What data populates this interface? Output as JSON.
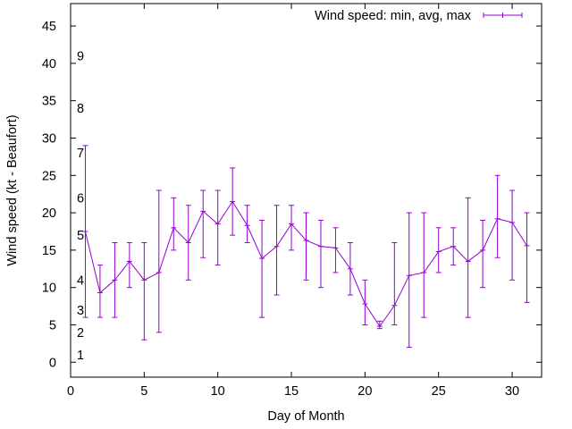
{
  "chart_data": {
    "type": "line",
    "title": "",
    "xlabel": "Day of Month",
    "ylabel": "Wind speed (kt - Beaufort)",
    "xlim": [
      0,
      32
    ],
    "ylim": [
      -2,
      48
    ],
    "x_ticks": [
      0,
      5,
      10,
      15,
      20,
      25,
      30
    ],
    "y_ticks": [
      0,
      5,
      10,
      15,
      20,
      25,
      30,
      35,
      40,
      45
    ],
    "grid": false,
    "legend_position": "top-right",
    "series": [
      {
        "name": "Wind speed: min, avg, max",
        "color": "#9400d3",
        "style": "errorbars-with-line",
        "x": [
          1,
          2,
          3,
          4,
          5,
          6,
          7,
          8,
          9,
          10,
          11,
          12,
          13,
          14,
          15,
          16,
          17,
          18,
          19,
          20,
          21,
          22,
          23,
          24,
          25,
          26,
          27,
          28,
          29,
          30,
          31
        ],
        "avg": [
          17.5,
          9.3,
          11,
          13.5,
          11,
          12,
          18,
          16,
          20.2,
          18.5,
          21.5,
          18.3,
          13.9,
          15.5,
          18.5,
          16.3,
          15.5,
          15.3,
          12.5,
          7.8,
          4.8,
          7.6,
          11.6,
          12,
          14.8,
          15.5,
          13.5,
          15,
          19.2,
          18.7,
          15.6
        ],
        "min": [
          6,
          6,
          6,
          10,
          3,
          4,
          15,
          11,
          14,
          13,
          17,
          16,
          6,
          9,
          15,
          11,
          10,
          12,
          9,
          5,
          4.5,
          5,
          2,
          6,
          12,
          13,
          6,
          10,
          14,
          11,
          8
        ],
        "max": [
          29,
          13,
          16,
          16,
          16,
          23,
          22,
          21,
          23,
          23,
          26,
          21,
          19,
          21,
          21,
          20,
          19,
          18,
          16,
          11,
          5.5,
          16,
          20,
          20,
          18,
          18,
          22,
          19,
          25,
          23,
          20
        ]
      }
    ],
    "beaufort_labels": [
      {
        "text": "1",
        "y": 1
      },
      {
        "text": "2",
        "y": 4
      },
      {
        "text": "3",
        "y": 7
      },
      {
        "text": "4",
        "y": 11
      },
      {
        "text": "5",
        "y": 17
      },
      {
        "text": "6",
        "y": 22
      },
      {
        "text": "7",
        "y": 28
      },
      {
        "text": "8",
        "y": 34
      },
      {
        "text": "9",
        "y": 41
      }
    ]
  }
}
